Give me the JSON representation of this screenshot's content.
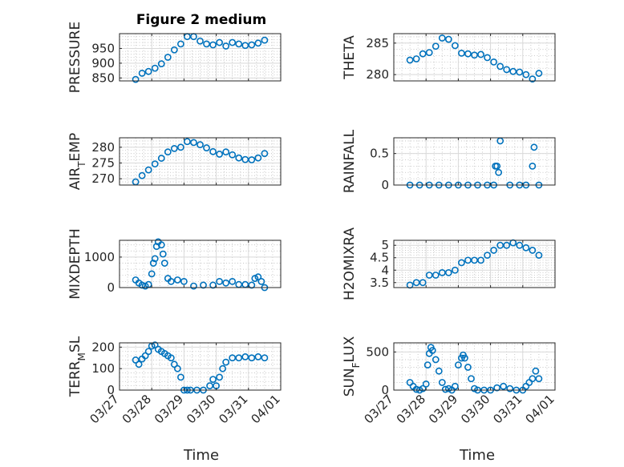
{
  "figure": {
    "title": "Figure 2 medium",
    "xlabel": "Time"
  },
  "colors": {
    "marker": "#0072BD"
  },
  "x_ticks": [
    "03/27",
    "03/28",
    "03/29",
    "03/30",
    "03/31",
    "04/01"
  ],
  "chart_data": [
    {
      "id": "pressure",
      "type": "scatter",
      "ylabel": "PRESSURE",
      "xlim": [
        0,
        5
      ],
      "ylim": [
        840,
        1000
      ],
      "yticks": [
        850,
        900,
        950
      ],
      "ytick_labels": [
        "850",
        "900",
        "950"
      ],
      "x": [
        0.5,
        0.7,
        0.9,
        1.1,
        1.3,
        1.5,
        1.7,
        1.9,
        2.1,
        2.3,
        2.5,
        2.7,
        2.9,
        3.1,
        3.3,
        3.5,
        3.7,
        3.9,
        4.1,
        4.3,
        4.5
      ],
      "y": [
        845,
        866,
        872,
        883,
        898,
        920,
        945,
        965,
        990,
        990,
        975,
        965,
        962,
        970,
        958,
        970,
        965,
        960,
        962,
        968,
        978
      ]
    },
    {
      "id": "theta",
      "type": "scatter",
      "ylabel": "THETA",
      "xlim": [
        0,
        5
      ],
      "ylim": [
        279,
        286.5
      ],
      "yticks": [
        280,
        285
      ],
      "ytick_labels": [
        "280",
        "285"
      ],
      "x": [
        0.5,
        0.7,
        0.9,
        1.1,
        1.3,
        1.5,
        1.7,
        1.9,
        2.1,
        2.3,
        2.5,
        2.7,
        2.9,
        3.1,
        3.3,
        3.5,
        3.7,
        3.9,
        4.1,
        4.3,
        4.5
      ],
      "y": [
        282.3,
        282.5,
        283.3,
        283.5,
        284.5,
        285.8,
        285.6,
        284.6,
        283.4,
        283.3,
        283.1,
        283.2,
        282.7,
        282.0,
        281.3,
        280.8,
        280.5,
        280.4,
        280.0,
        279.3,
        280.2
      ]
    },
    {
      "id": "air_temp",
      "type": "scatter",
      "ylabel": "AIR",
      "ylabel_sub": "T",
      "ylabel_rest": "EMP",
      "xlim": [
        0,
        5
      ],
      "ylim": [
        268,
        283
      ],
      "yticks": [
        270,
        275,
        280
      ],
      "ytick_labels": [
        "270",
        "275",
        "280"
      ],
      "x": [
        0.5,
        0.7,
        0.9,
        1.1,
        1.3,
        1.5,
        1.7,
        1.9,
        2.1,
        2.3,
        2.5,
        2.7,
        2.9,
        3.1,
        3.3,
        3.5,
        3.7,
        3.9,
        4.1,
        4.3,
        4.5
      ],
      "y": [
        269,
        271,
        272.8,
        274.7,
        276.5,
        278.5,
        279.6,
        280.0,
        281.8,
        281.5,
        280.8,
        279.8,
        278.6,
        277.8,
        278.5,
        277.6,
        276.6,
        276.1,
        276.0,
        276.6,
        278.0
      ]
    },
    {
      "id": "rainfall",
      "type": "scatter",
      "ylabel": "RAINFALL",
      "xlim": [
        0,
        5
      ],
      "ylim": [
        0,
        0.75
      ],
      "yticks": [
        0,
        0.5
      ],
      "ytick_labels": [
        "0",
        "0.5"
      ],
      "x": [
        0.5,
        0.8,
        1.1,
        1.4,
        1.7,
        2.0,
        2.3,
        2.6,
        2.9,
        3.1,
        3.15,
        3.2,
        3.25,
        3.3,
        3.6,
        3.9,
        4.1,
        4.3,
        4.35,
        4.5
      ],
      "y": [
        0,
        0,
        0,
        0,
        0,
        0,
        0,
        0,
        0,
        0,
        0.3,
        0.3,
        0.2,
        0.7,
        0,
        0,
        0,
        0.3,
        0.6,
        0
      ]
    },
    {
      "id": "mixdepth",
      "type": "scatter",
      "ylabel": "MIXDEPTH",
      "xlim": [
        0,
        5
      ],
      "ylim": [
        0,
        1550
      ],
      "yticks": [
        0,
        1000
      ],
      "ytick_labels": [
        "0",
        "1000"
      ],
      "x": [
        0.5,
        0.6,
        0.7,
        0.8,
        0.9,
        1.0,
        1.05,
        1.1,
        1.15,
        1.2,
        1.3,
        1.35,
        1.4,
        1.5,
        1.6,
        1.8,
        2.0,
        2.3,
        2.6,
        2.9,
        3.1,
        3.3,
        3.5,
        3.7,
        3.9,
        4.1,
        4.2,
        4.3,
        4.4,
        4.5
      ],
      "y": [
        250,
        150,
        80,
        50,
        100,
        450,
        800,
        950,
        1350,
        1500,
        1400,
        1100,
        800,
        300,
        200,
        250,
        200,
        50,
        80,
        80,
        200,
        150,
        200,
        100,
        100,
        80,
        300,
        350,
        200,
        0
      ]
    },
    {
      "id": "h2omixra",
      "type": "scatter",
      "ylabel": "H2OMIXRA",
      "xlim": [
        0,
        5
      ],
      "ylim": [
        3.3,
        5.2
      ],
      "yticks": [
        3.5,
        4,
        4.5,
        5
      ],
      "ytick_labels": [
        "3.5",
        "4",
        "4.5",
        "5"
      ],
      "x": [
        0.5,
        0.7,
        0.9,
        1.1,
        1.3,
        1.5,
        1.7,
        1.9,
        2.1,
        2.3,
        2.5,
        2.7,
        2.9,
        3.1,
        3.3,
        3.5,
        3.7,
        3.9,
        4.1,
        4.3,
        4.5
      ],
      "y": [
        3.4,
        3.5,
        3.5,
        3.8,
        3.8,
        3.9,
        3.9,
        4.0,
        4.3,
        4.4,
        4.4,
        4.4,
        4.6,
        4.8,
        5.0,
        5.0,
        5.1,
        5.0,
        4.9,
        4.8,
        4.6
      ]
    },
    {
      "id": "terr_msl",
      "type": "scatter",
      "ylabel": "TERR",
      "ylabel_sub": "M",
      "ylabel_rest": "SL",
      "xlim": [
        0,
        5
      ],
      "ylim": [
        0,
        220
      ],
      "yticks": [
        0,
        100,
        200
      ],
      "ytick_labels": [
        "0",
        "100",
        "200"
      ],
      "x": [
        0.5,
        0.6,
        0.7,
        0.8,
        0.9,
        1.0,
        1.1,
        1.2,
        1.3,
        1.4,
        1.5,
        1.6,
        1.7,
        1.8,
        1.9,
        2.0,
        2.1,
        2.2,
        2.4,
        2.6,
        2.8,
        2.9,
        3.0,
        3.1,
        3.2,
        3.3,
        3.5,
        3.7,
        3.9,
        4.1,
        4.3,
        4.5
      ],
      "y": [
        140,
        120,
        145,
        160,
        180,
        205,
        210,
        190,
        180,
        170,
        160,
        150,
        120,
        100,
        60,
        0,
        0,
        0,
        0,
        0,
        20,
        50,
        20,
        60,
        100,
        130,
        150,
        150,
        155,
        150,
        155,
        150
      ]
    },
    {
      "id": "sun_flux",
      "type": "scatter",
      "ylabel": "SUN",
      "ylabel_sub": "F",
      "ylabel_rest": "LUX",
      "xlim": [
        0,
        5
      ],
      "ylim": [
        0,
        620
      ],
      "yticks": [
        0,
        500
      ],
      "ytick_labels": [
        "0",
        "500"
      ],
      "x": [
        0.5,
        0.6,
        0.7,
        0.8,
        0.9,
        1.0,
        1.05,
        1.1,
        1.15,
        1.2,
        1.3,
        1.4,
        1.5,
        1.6,
        1.7,
        1.8,
        1.9,
        2.0,
        2.1,
        2.15,
        2.2,
        2.3,
        2.4,
        2.5,
        2.6,
        2.8,
        3.0,
        3.2,
        3.4,
        3.6,
        3.8,
        4.0,
        4.1,
        4.2,
        4.3,
        4.4,
        4.5
      ],
      "y": [
        100,
        50,
        10,
        0,
        20,
        80,
        330,
        480,
        560,
        520,
        400,
        250,
        100,
        10,
        20,
        0,
        50,
        330,
        420,
        460,
        420,
        300,
        150,
        20,
        0,
        0,
        0,
        30,
        50,
        20,
        0,
        0,
        50,
        100,
        150,
        250,
        150
      ]
    }
  ]
}
